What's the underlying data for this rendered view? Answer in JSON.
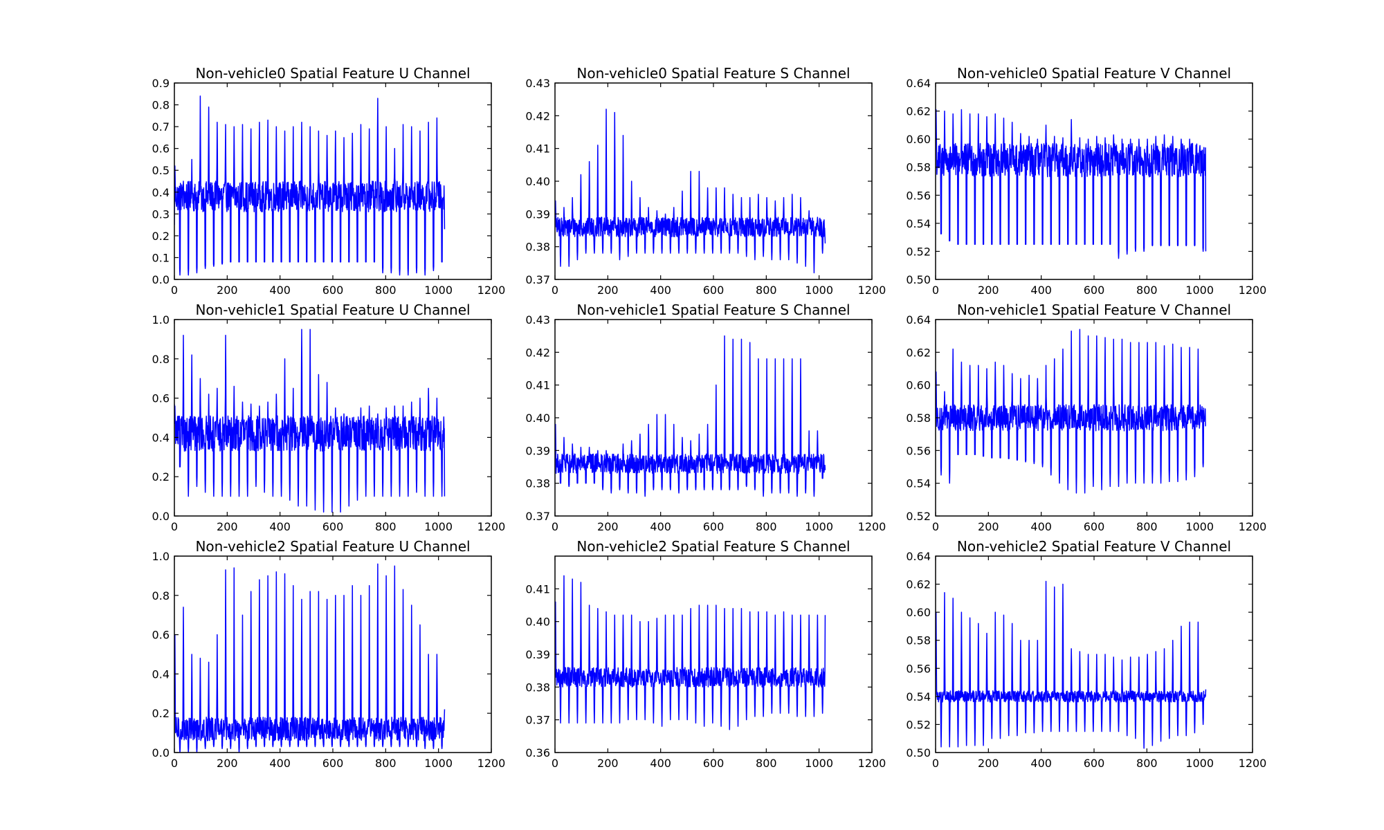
{
  "chart_data": [
    {
      "type": "line",
      "title": "Non-vehicle0 Spatial Feature U Channel",
      "xlabel": "",
      "ylabel": "",
      "xlim": [
        0,
        1200
      ],
      "ylim": [
        0,
        0.9
      ],
      "xticks": [
        0,
        200,
        400,
        600,
        800,
        1000,
        1200
      ],
      "yticks": [
        0.0,
        0.1,
        0.2,
        0.3,
        0.4,
        0.5,
        0.6,
        0.7,
        0.8,
        0.9
      ],
      "grid": false,
      "color": "#0000ff",
      "n_points": 1024,
      "series": [
        {
          "pattern": "periodic",
          "period": 32,
          "low": 0.08,
          "mid": 0.38,
          "spread": 0.07,
          "peaks": [
            0.52,
            0.45,
            0.55,
            0.84,
            0.79,
            0.72,
            0.71,
            0.7,
            0.71,
            0.69,
            0.72,
            0.73,
            0.7,
            0.68,
            0.7,
            0.72,
            0.7,
            0.68,
            0.66,
            0.68,
            0.65,
            0.67,
            0.71,
            0.69,
            0.83,
            0.7,
            0.6,
            0.71,
            0.7,
            0.68,
            0.72,
            0.74
          ],
          "troughs": [
            0.02,
            0.02,
            0.03,
            0.05,
            0.06,
            0.07,
            0.08,
            0.08,
            0.08,
            0.08,
            0.08,
            0.08,
            0.08,
            0.08,
            0.08,
            0.08,
            0.08,
            0.08,
            0.08,
            0.08,
            0.08,
            0.08,
            0.08,
            0.08,
            0.03,
            0.03,
            0.02,
            0.02,
            0.03,
            0.02,
            0.04,
            0.08
          ],
          "start": 0.25,
          "end": 0.23
        }
      ]
    },
    {
      "type": "line",
      "title": "Non-vehicle0 Spatial Feature S Channel",
      "xlabel": "",
      "ylabel": "",
      "xlim": [
        0,
        1200
      ],
      "ylim": [
        0.37,
        0.43
      ],
      "xticks": [
        0,
        200,
        400,
        600,
        800,
        1000,
        1200
      ],
      "yticks": [
        0.37,
        0.38,
        0.39,
        0.4,
        0.41,
        0.42,
        0.43
      ],
      "grid": false,
      "color": "#0000ff",
      "n_points": 1024,
      "series": [
        {
          "pattern": "periodic",
          "period": 32,
          "low": 0.381,
          "mid": 0.386,
          "spread": 0.003,
          "peaks": [
            0.394,
            0.392,
            0.395,
            0.402,
            0.406,
            0.411,
            0.422,
            0.421,
            0.414,
            0.4,
            0.395,
            0.392,
            0.391,
            0.39,
            0.392,
            0.397,
            0.403,
            0.403,
            0.398,
            0.398,
            0.398,
            0.396,
            0.395,
            0.395,
            0.396,
            0.395,
            0.394,
            0.395,
            0.396,
            0.395,
            0.391,
            0.389
          ],
          "troughs": [
            0.374,
            0.374,
            0.376,
            0.378,
            0.378,
            0.378,
            0.378,
            0.376,
            0.377,
            0.378,
            0.378,
            0.378,
            0.378,
            0.378,
            0.378,
            0.378,
            0.378,
            0.378,
            0.378,
            0.378,
            0.378,
            0.378,
            0.377,
            0.376,
            0.377,
            0.376,
            0.376,
            0.376,
            0.375,
            0.374,
            0.372,
            0.378
          ],
          "start": 0.393,
          "end": 0.381
        }
      ]
    },
    {
      "type": "line",
      "title": "Non-vehicle0 Spatial Feature V Channel",
      "xlabel": "",
      "ylabel": "",
      "xlim": [
        0,
        1200
      ],
      "ylim": [
        0.5,
        0.64
      ],
      "xticks": [
        0,
        200,
        400,
        600,
        800,
        1000,
        1200
      ],
      "yticks": [
        0.5,
        0.52,
        0.54,
        0.56,
        0.58,
        0.6,
        0.62,
        0.64
      ],
      "grid": false,
      "color": "#0000ff",
      "n_points": 1024,
      "series": [
        {
          "pattern": "periodic",
          "period": 32,
          "low": 0.525,
          "mid": 0.585,
          "spread": 0.012,
          "peaks": [
            0.621,
            0.62,
            0.618,
            0.621,
            0.618,
            0.618,
            0.616,
            0.618,
            0.615,
            0.612,
            0.604,
            0.602,
            0.6,
            0.61,
            0.602,
            0.601,
            0.614,
            0.601,
            0.6,
            0.602,
            0.601,
            0.603,
            0.6,
            0.6,
            0.6,
            0.6,
            0.602,
            0.603,
            0.602,
            0.6,
            0.6,
            0.59
          ],
          "troughs": [
            0.54,
            0.53,
            0.525,
            0.525,
            0.525,
            0.525,
            0.525,
            0.525,
            0.525,
            0.525,
            0.525,
            0.525,
            0.525,
            0.525,
            0.525,
            0.525,
            0.525,
            0.525,
            0.525,
            0.525,
            0.525,
            0.515,
            0.518,
            0.52,
            0.52,
            0.524,
            0.524,
            0.524,
            0.524,
            0.524,
            0.524,
            0.52
          ],
          "start": 0.6,
          "end": 0.52
        }
      ]
    },
    {
      "type": "line",
      "title": "Non-vehicle1 Spatial Feature U Channel",
      "xlabel": "",
      "ylabel": "",
      "xlim": [
        0,
        1200
      ],
      "ylim": [
        0,
        1.0
      ],
      "xticks": [
        0,
        200,
        400,
        600,
        800,
        1000,
        1200
      ],
      "yticks": [
        0.0,
        0.2,
        0.4,
        0.6,
        0.8,
        1.0
      ],
      "grid": false,
      "color": "#0000ff",
      "n_points": 1024,
      "series": [
        {
          "pattern": "periodic",
          "period": 32,
          "low": 0.25,
          "mid": 0.42,
          "spread": 0.09,
          "peaks": [
            0.56,
            0.92,
            0.82,
            0.7,
            0.62,
            0.65,
            0.92,
            0.66,
            0.58,
            0.57,
            0.56,
            0.58,
            0.62,
            0.8,
            0.65,
            0.95,
            0.95,
            0.72,
            0.68,
            0.55,
            0.52,
            0.5,
            0.55,
            0.56,
            0.52,
            0.55,
            0.56,
            0.56,
            0.58,
            0.6,
            0.65,
            0.6
          ],
          "troughs": [
            0.25,
            0.1,
            0.15,
            0.12,
            0.1,
            0.1,
            0.1,
            0.1,
            0.1,
            0.15,
            0.12,
            0.1,
            0.1,
            0.08,
            0.05,
            0.05,
            0.03,
            0.02,
            0.02,
            0.02,
            0.05,
            0.08,
            0.1,
            0.1,
            0.1,
            0.1,
            0.1,
            0.1,
            0.12,
            0.1,
            0.1,
            0.1
          ],
          "start": 0.57,
          "end": 0.1
        }
      ]
    },
    {
      "type": "line",
      "title": "Non-vehicle1 Spatial Feature S Channel",
      "xlabel": "",
      "ylabel": "",
      "xlim": [
        0,
        1200
      ],
      "ylim": [
        0.37,
        0.43
      ],
      "xticks": [
        0,
        200,
        400,
        600,
        800,
        1000,
        1200
      ],
      "yticks": [
        0.37,
        0.38,
        0.39,
        0.4,
        0.41,
        0.42,
        0.43
      ],
      "grid": false,
      "color": "#0000ff",
      "n_points": 1024,
      "series": [
        {
          "pattern": "periodic",
          "period": 32,
          "low": 0.38,
          "mid": 0.386,
          "spread": 0.003,
          "peaks": [
            0.398,
            0.394,
            0.392,
            0.391,
            0.391,
            0.39,
            0.39,
            0.388,
            0.392,
            0.393,
            0.395,
            0.398,
            0.401,
            0.401,
            0.398,
            0.394,
            0.393,
            0.395,
            0.398,
            0.41,
            0.425,
            0.424,
            0.424,
            0.423,
            0.418,
            0.418,
            0.418,
            0.418,
            0.418,
            0.418,
            0.396,
            0.396
          ],
          "troughs": [
            0.38,
            0.379,
            0.38,
            0.38,
            0.38,
            0.378,
            0.377,
            0.378,
            0.377,
            0.377,
            0.376,
            0.378,
            0.378,
            0.378,
            0.377,
            0.378,
            0.378,
            0.378,
            0.378,
            0.378,
            0.378,
            0.378,
            0.379,
            0.378,
            0.376,
            0.377,
            0.377,
            0.377,
            0.376,
            0.377,
            0.376,
            0.383
          ],
          "start": 0.398,
          "end": 0.384
        }
      ]
    },
    {
      "type": "line",
      "title": "Non-vehicle1 Spatial Feature V Channel",
      "xlabel": "",
      "ylabel": "",
      "xlim": [
        0,
        1200
      ],
      "ylim": [
        0.52,
        0.64
      ],
      "xticks": [
        0,
        200,
        400,
        600,
        800,
        1000,
        1200
      ],
      "yticks": [
        0.52,
        0.54,
        0.56,
        0.58,
        0.6,
        0.62,
        0.64
      ],
      "grid": false,
      "color": "#0000ff",
      "n_points": 1024,
      "series": [
        {
          "pattern": "periodic",
          "period": 32,
          "low": 0.555,
          "mid": 0.58,
          "spread": 0.008,
          "peaks": [
            0.608,
            0.596,
            0.622,
            0.614,
            0.612,
            0.612,
            0.61,
            0.614,
            0.612,
            0.607,
            0.604,
            0.606,
            0.604,
            0.612,
            0.616,
            0.622,
            0.633,
            0.634,
            0.63,
            0.63,
            0.629,
            0.628,
            0.628,
            0.626,
            0.626,
            0.626,
            0.626,
            0.624,
            0.625,
            0.623,
            0.623,
            0.622
          ],
          "troughs": [
            0.545,
            0.54,
            0.56,
            0.56,
            0.56,
            0.558,
            0.556,
            0.556,
            0.555,
            0.554,
            0.553,
            0.552,
            0.55,
            0.545,
            0.54,
            0.536,
            0.534,
            0.534,
            0.538,
            0.536,
            0.538,
            0.538,
            0.54,
            0.54,
            0.54,
            0.54,
            0.54,
            0.541,
            0.541,
            0.542,
            0.544,
            0.55
          ],
          "start": 0.6,
          "end": 0.575
        }
      ]
    },
    {
      "type": "line",
      "title": "Non-vehicle2 Spatial Feature U Channel",
      "xlabel": "",
      "ylabel": "",
      "xlim": [
        0,
        1200
      ],
      "ylim": [
        0,
        1.0
      ],
      "xticks": [
        0,
        200,
        400,
        600,
        800,
        1000,
        1200
      ],
      "yticks": [
        0.0,
        0.2,
        0.4,
        0.6,
        0.8,
        1.0
      ],
      "grid": false,
      "color": "#0000ff",
      "n_points": 1024,
      "series": [
        {
          "pattern": "periodic",
          "period": 32,
          "low": 0.05,
          "mid": 0.12,
          "spread": 0.06,
          "peaks": [
            0.6,
            0.74,
            0.5,
            0.48,
            0.46,
            0.6,
            0.93,
            0.94,
            0.7,
            0.82,
            0.88,
            0.9,
            0.92,
            0.91,
            0.85,
            0.78,
            0.82,
            0.82,
            0.78,
            0.8,
            0.8,
            0.85,
            0.8,
            0.85,
            0.96,
            0.9,
            0.95,
            0.83,
            0.75,
            0.65,
            0.5,
            0.5
          ],
          "troughs": [
            0.0,
            0.0,
            0.0,
            0.02,
            0.03,
            0.02,
            0.02,
            0.0,
            0.02,
            0.03,
            0.03,
            0.03,
            0.03,
            0.03,
            0.03,
            0.03,
            0.03,
            0.03,
            0.03,
            0.03,
            0.03,
            0.03,
            0.03,
            0.03,
            0.03,
            0.03,
            0.03,
            0.03,
            0.03,
            0.02,
            0.02,
            0.02
          ],
          "start": 0.55,
          "end": 0.22
        }
      ]
    },
    {
      "type": "line",
      "title": "Non-vehicle2 Spatial Feature S Channel",
      "xlabel": "",
      "ylabel": "",
      "xlim": [
        0,
        1200
      ],
      "ylim": [
        0.36,
        0.42
      ],
      "xticks": [
        0,
        200,
        400,
        600,
        800,
        1000,
        1200
      ],
      "yticks": [
        0.36,
        0.37,
        0.38,
        0.39,
        0.4,
        0.41
      ],
      "grid": false,
      "color": "#0000ff",
      "n_points": 1024,
      "series": [
        {
          "pattern": "periodic",
          "period": 32,
          "low": 0.378,
          "mid": 0.383,
          "spread": 0.003,
          "peaks": [
            0.406,
            0.414,
            0.413,
            0.412,
            0.405,
            0.404,
            0.403,
            0.402,
            0.402,
            0.402,
            0.4,
            0.4,
            0.401,
            0.402,
            0.402,
            0.402,
            0.404,
            0.405,
            0.405,
            0.405,
            0.404,
            0.404,
            0.404,
            0.403,
            0.403,
            0.403,
            0.402,
            0.403,
            0.402,
            0.402,
            0.402,
            0.402
          ],
          "troughs": [
            0.369,
            0.369,
            0.369,
            0.369,
            0.369,
            0.369,
            0.369,
            0.369,
            0.37,
            0.37,
            0.37,
            0.369,
            0.368,
            0.37,
            0.37,
            0.37,
            0.369,
            0.368,
            0.369,
            0.368,
            0.367,
            0.368,
            0.37,
            0.371,
            0.371,
            0.372,
            0.372,
            0.372,
            0.371,
            0.371,
            0.371,
            0.372
          ],
          "start": 0.38,
          "end": 0.402
        }
      ]
    },
    {
      "type": "line",
      "title": "Non-vehicle2 Spatial Feature V Channel",
      "xlabel": "",
      "ylabel": "",
      "xlim": [
        0,
        1200
      ],
      "ylim": [
        0.5,
        0.64
      ],
      "xticks": [
        0,
        200,
        400,
        600,
        800,
        1000,
        1200
      ],
      "yticks": [
        0.5,
        0.52,
        0.54,
        0.56,
        0.58,
        0.6,
        0.62,
        0.64
      ],
      "grid": false,
      "color": "#0000ff",
      "n_points": 1024,
      "series": [
        {
          "pattern": "periodic",
          "period": 32,
          "low": 0.53,
          "mid": 0.54,
          "spread": 0.004,
          "peaks": [
            0.6,
            0.614,
            0.61,
            0.6,
            0.596,
            0.592,
            0.585,
            0.6,
            0.598,
            0.592,
            0.58,
            0.58,
            0.58,
            0.622,
            0.618,
            0.62,
            0.574,
            0.572,
            0.57,
            0.57,
            0.57,
            0.568,
            0.566,
            0.568,
            0.568,
            0.57,
            0.572,
            0.574,
            0.58,
            0.59,
            0.593,
            0.593
          ],
          "troughs": [
            0.504,
            0.504,
            0.504,
            0.505,
            0.505,
            0.505,
            0.51,
            0.51,
            0.512,
            0.512,
            0.514,
            0.514,
            0.515,
            0.515,
            0.515,
            0.515,
            0.515,
            0.515,
            0.515,
            0.515,
            0.515,
            0.515,
            0.512,
            0.51,
            0.503,
            0.505,
            0.508,
            0.51,
            0.512,
            0.512,
            0.514,
            0.52
          ],
          "start": 0.555,
          "end": 0.545
        }
      ]
    }
  ]
}
